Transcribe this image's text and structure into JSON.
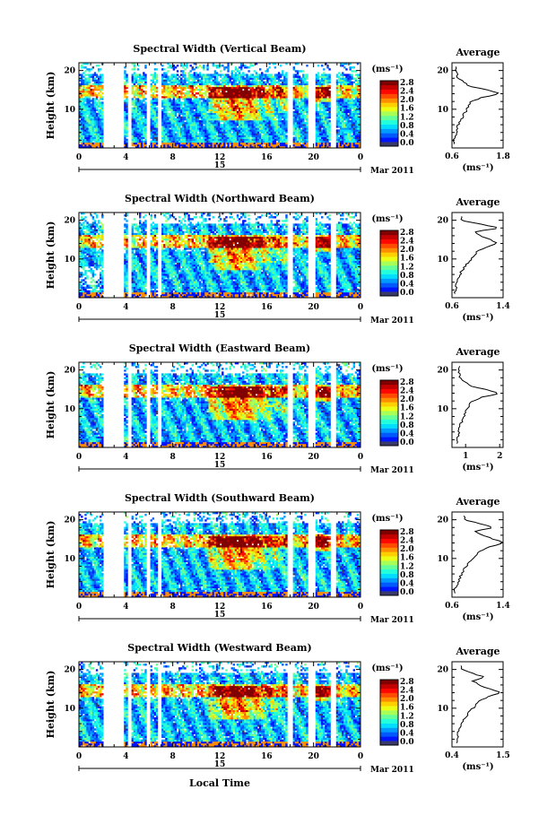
{
  "figure": {
    "xlabel": "Local Time",
    "date_label": "Mar 2011",
    "day_label": "15",
    "height_label": "Height (km)",
    "colorbar_unit": "(ms⁻¹)",
    "average_title": "Average",
    "average_unit": "(ms⁻¹)"
  },
  "chart_data": [
    {
      "type": "heatmap",
      "title": "Spectral Width (Vertical Beam)",
      "xlabel": "Local Time",
      "ylabel": "Height (km)",
      "xlim": [
        0,
        24
      ],
      "x_ticks": [
        "0",
        "4",
        "8",
        "12",
        "16",
        "20",
        "0"
      ],
      "y_ticks": [
        "10",
        "20"
      ],
      "colorbar_ticks": [
        "0.0",
        "0.4",
        "0.8",
        "1.2",
        "1.6",
        "2.0",
        "2.4",
        "2.8"
      ],
      "colorbar_range": [
        0,
        3.0
      ],
      "average_profile": {
        "title": "Average",
        "xlabel": "(ms⁻¹)",
        "x_ticks": [
          "0.6",
          "1.8"
        ],
        "xlim": [
          0.6,
          1.8
        ],
        "height": [
          2,
          4,
          6,
          8,
          10,
          12,
          13,
          14,
          15,
          16,
          18,
          20
        ],
        "value": [
          0.65,
          0.7,
          0.75,
          0.85,
          0.95,
          1.05,
          1.3,
          1.75,
          1.4,
          1.0,
          0.75,
          0.7
        ]
      }
    },
    {
      "type": "heatmap",
      "title": "Spectral Width (Northward Beam)",
      "xlabel": "Local Time",
      "ylabel": "Height (km)",
      "xlim": [
        0,
        24
      ],
      "x_ticks": [
        "0",
        "4",
        "8",
        "12",
        "16",
        "20",
        "0"
      ],
      "y_ticks": [
        "10",
        "20"
      ],
      "colorbar_ticks": [
        "0.0",
        "0.4",
        "0.8",
        "1.2",
        "1.6",
        "2.0",
        "2.4",
        "2.8"
      ],
      "colorbar_range": [
        0,
        3.0
      ],
      "average_profile": {
        "title": "Average",
        "xlabel": "(ms⁻¹)",
        "x_ticks": [
          "0.6",
          "1.4"
        ],
        "xlim": [
          0.6,
          1.4
        ],
        "height": [
          2,
          4,
          6,
          8,
          10,
          12,
          13,
          14,
          15,
          16,
          17,
          18,
          20
        ],
        "value": [
          0.65,
          0.68,
          0.72,
          0.8,
          0.9,
          1.0,
          1.15,
          1.3,
          1.2,
          1.05,
          0.95,
          1.35,
          0.75
        ]
      }
    },
    {
      "type": "heatmap",
      "title": "Spectral Width (Eastward Beam)",
      "xlabel": "Local Time",
      "ylabel": "Height (km)",
      "xlim": [
        0,
        24
      ],
      "x_ticks": [
        "0",
        "4",
        "8",
        "12",
        "16",
        "20",
        "0"
      ],
      "y_ticks": [
        "10",
        "20"
      ],
      "colorbar_ticks": [
        "0.0",
        "0.4",
        "0.8",
        "1.2",
        "1.6",
        "2.0",
        "2.4",
        "2.8"
      ],
      "colorbar_range": [
        0,
        3.0
      ],
      "average_profile": {
        "title": "Average",
        "xlabel": "(ms⁻¹)",
        "x_ticks": [
          "1",
          "2"
        ],
        "xlim": [
          0.6,
          2.1
        ],
        "height": [
          2,
          4,
          6,
          8,
          10,
          12,
          13,
          14,
          15,
          16,
          18,
          20
        ],
        "value": [
          0.75,
          0.8,
          0.85,
          0.95,
          1.05,
          1.2,
          1.5,
          2.0,
          1.6,
          1.1,
          0.85,
          0.8
        ]
      }
    },
    {
      "type": "heatmap",
      "title": "Spectral Width (Southward Beam)",
      "xlabel": "Local Time",
      "ylabel": "Height (km)",
      "xlim": [
        0,
        24
      ],
      "x_ticks": [
        "0",
        "4",
        "8",
        "12",
        "16",
        "20",
        "0"
      ],
      "y_ticks": [
        "10",
        "20"
      ],
      "colorbar_ticks": [
        "0.0",
        "0.4",
        "0.8",
        "1.2",
        "1.6",
        "2.0",
        "2.4",
        "2.8"
      ],
      "colorbar_range": [
        0,
        3.0
      ],
      "average_profile": {
        "title": "Average",
        "xlabel": "(ms⁻¹)",
        "x_ticks": [
          "0.6",
          "1.4"
        ],
        "xlim": [
          0.6,
          1.4
        ],
        "height": [
          2,
          4,
          6,
          8,
          10,
          12,
          13,
          14,
          15,
          16,
          17,
          18,
          20
        ],
        "value": [
          0.65,
          0.7,
          0.75,
          0.82,
          0.92,
          1.05,
          1.2,
          1.42,
          1.25,
          1.1,
          0.95,
          1.25,
          0.8
        ]
      }
    },
    {
      "type": "heatmap",
      "title": "Spectral Width (Westward Beam)",
      "xlabel": "Local Time",
      "ylabel": "Height (km)",
      "xlim": [
        0,
        24
      ],
      "x_ticks": [
        "0",
        "4",
        "8",
        "12",
        "16",
        "20",
        "0"
      ],
      "y_ticks": [
        "10",
        "20"
      ],
      "colorbar_ticks": [
        "0.0",
        "0.4",
        "0.8",
        "1.2",
        "1.6",
        "2.0",
        "2.4",
        "2.8"
      ],
      "colorbar_range": [
        0,
        3.0
      ],
      "average_profile": {
        "title": "Average",
        "xlabel": "(ms⁻¹)",
        "x_ticks": [
          "0.4",
          "1.5"
        ],
        "xlim": [
          0.4,
          1.5
        ],
        "height": [
          2,
          4,
          6,
          8,
          10,
          12,
          13,
          14,
          15,
          16,
          17,
          18,
          20
        ],
        "value": [
          0.5,
          0.55,
          0.6,
          0.7,
          0.85,
          1.0,
          1.2,
          1.45,
          1.2,
          1.0,
          0.85,
          1.1,
          0.6
        ]
      }
    }
  ]
}
